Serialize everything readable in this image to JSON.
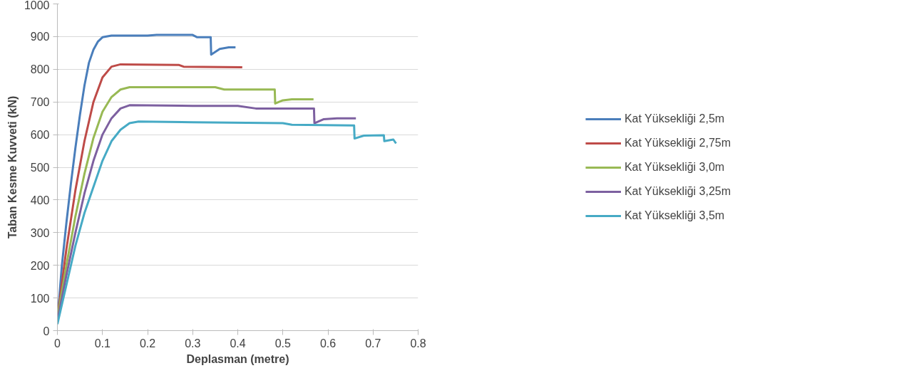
{
  "chart_data": {
    "type": "line",
    "xlabel": "Deplasman (metre)",
    "ylabel": "Taban Kesme Kuvveti (kN)",
    "xlim": [
      0,
      0.8
    ],
    "xticks": [
      0,
      0.1,
      0.2,
      0.3,
      0.4,
      0.5,
      0.6,
      0.7,
      0.8
    ],
    "ylim": [
      0,
      1000
    ],
    "yticks": [
      0,
      100,
      200,
      300,
      400,
      500,
      600,
      700,
      800,
      900,
      1000
    ],
    "grid": "y",
    "legend": "right",
    "marker": "none",
    "line_style": "solid",
    "series": [
      {
        "name": "Kat Yüksekliği 2,5m",
        "color": "#4a7ebb",
        "x": [
          0,
          0.01,
          0.02,
          0.03,
          0.04,
          0.05,
          0.06,
          0.07,
          0.08,
          0.09,
          0.1,
          0.12,
          0.2,
          0.22,
          0.3,
          0.31,
          0.34,
          0.341,
          0.36,
          0.38,
          0.395
        ],
        "values": [
          30,
          200,
          330,
          450,
          560,
          660,
          750,
          820,
          860,
          885,
          898,
          903,
          903,
          905,
          905,
          898,
          898,
          845,
          862,
          867,
          867
        ]
      },
      {
        "name": "Kat Yüksekliği 2,75m",
        "color": "#be4b48",
        "x": [
          0,
          0.02,
          0.04,
          0.06,
          0.08,
          0.1,
          0.12,
          0.14,
          0.27,
          0.28,
          0.41
        ],
        "values": [
          40,
          250,
          430,
          580,
          700,
          775,
          808,
          815,
          813,
          808,
          806
        ]
      },
      {
        "name": "Kat Yüksekliği 3,0m",
        "color": "#98b954",
        "x": [
          0,
          0.02,
          0.04,
          0.06,
          0.08,
          0.1,
          0.12,
          0.14,
          0.16,
          0.3,
          0.35,
          0.37,
          0.482,
          0.483,
          0.5,
          0.52,
          0.568
        ],
        "values": [
          40,
          200,
          350,
          480,
          590,
          670,
          715,
          738,
          745,
          745,
          745,
          738,
          738,
          695,
          705,
          708,
          708
        ]
      },
      {
        "name": "Kat Yüksekliği 3,25m",
        "color": "#7d60a0",
        "x": [
          0,
          0.02,
          0.04,
          0.06,
          0.08,
          0.1,
          0.12,
          0.14,
          0.16,
          0.3,
          0.4,
          0.44,
          0.569,
          0.57,
          0.59,
          0.62,
          0.662
        ],
        "values": [
          30,
          170,
          300,
          420,
          520,
          600,
          650,
          680,
          690,
          688,
          688,
          680,
          680,
          635,
          647,
          650,
          650
        ]
      },
      {
        "name": "Kat Yüksekliği 3,5m",
        "color": "#46aac5",
        "x": [
          0,
          0.02,
          0.04,
          0.06,
          0.08,
          0.1,
          0.12,
          0.14,
          0.16,
          0.18,
          0.3,
          0.5,
          0.52,
          0.658,
          0.659,
          0.68,
          0.724,
          0.725,
          0.745,
          0.751
        ],
        "values": [
          20,
          140,
          260,
          360,
          440,
          520,
          580,
          615,
          635,
          640,
          638,
          635,
          630,
          628,
          588,
          597,
          598,
          580,
          585,
          573
        ]
      }
    ]
  }
}
